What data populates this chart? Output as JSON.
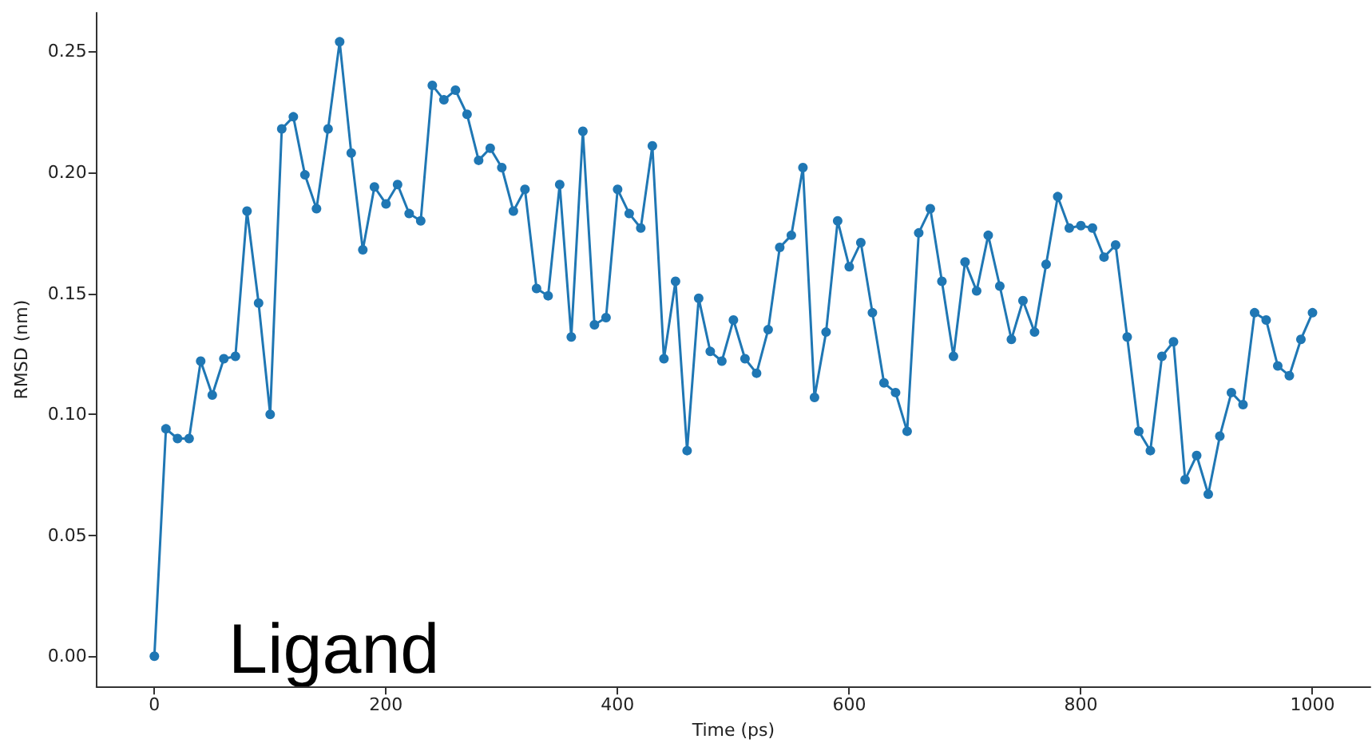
{
  "chart_data": {
    "type": "line",
    "xlabel": "Time (ps)",
    "ylabel": "RMSD (nm)",
    "annotations": [
      "Ligand"
    ],
    "x": [
      0,
      10,
      20,
      30,
      40,
      50,
      60,
      70,
      80,
      90,
      100,
      110,
      120,
      130,
      140,
      150,
      160,
      170,
      180,
      190,
      200,
      210,
      220,
      230,
      240,
      250,
      260,
      270,
      280,
      290,
      300,
      310,
      320,
      330,
      340,
      350,
      360,
      370,
      380,
      390,
      400,
      410,
      420,
      430,
      440,
      450,
      460,
      470,
      480,
      490,
      500,
      510,
      520,
      530,
      540,
      550,
      560,
      570,
      580,
      590,
      600,
      610,
      620,
      630,
      640,
      650,
      660,
      670,
      680,
      690,
      700,
      710,
      720,
      730,
      740,
      750,
      760,
      770,
      780,
      790,
      800,
      810,
      820,
      830,
      840,
      850,
      860,
      870,
      880,
      890,
      900,
      910,
      920,
      930,
      940,
      950,
      960,
      970,
      980,
      990,
      1000
    ],
    "series": [
      {
        "color": "#1f77b4",
        "values": [
          0.0,
          0.094,
          0.09,
          0.09,
          0.122,
          0.108,
          0.123,
          0.124,
          0.184,
          0.146,
          0.1,
          0.218,
          0.223,
          0.199,
          0.185,
          0.218,
          0.254,
          0.208,
          0.168,
          0.194,
          0.187,
          0.195,
          0.183,
          0.18,
          0.236,
          0.23,
          0.234,
          0.224,
          0.205,
          0.21,
          0.202,
          0.184,
          0.193,
          0.152,
          0.149,
          0.195,
          0.132,
          0.217,
          0.137,
          0.14,
          0.193,
          0.183,
          0.177,
          0.211,
          0.123,
          0.155,
          0.085,
          0.148,
          0.126,
          0.122,
          0.139,
          0.123,
          0.117,
          0.135,
          0.169,
          0.174,
          0.202,
          0.107,
          0.134,
          0.18,
          0.161,
          0.171,
          0.142,
          0.113,
          0.109,
          0.093,
          0.175,
          0.185,
          0.155,
          0.124,
          0.163,
          0.151,
          0.174,
          0.153,
          0.131,
          0.147,
          0.134,
          0.162,
          0.19,
          0.177,
          0.178,
          0.177,
          0.165,
          0.17,
          0.132,
          0.093,
          0.085,
          0.124,
          0.13,
          0.073,
          0.083,
          0.067,
          0.091,
          0.109,
          0.104,
          0.142,
          0.139,
          0.12,
          0.116,
          0.131,
          0.142
        ]
      }
    ],
    "xlim": [
      -50,
      1050
    ],
    "ylim": [
      -0.0125,
      0.266
    ],
    "xticks": [
      0,
      200,
      400,
      600,
      800,
      1000
    ],
    "yticks": [
      {
        "value": 0,
        "label": "0.00"
      },
      {
        "value": 0.05,
        "label": "0.05"
      },
      {
        "value": 0.1,
        "label": "0.10"
      },
      {
        "value": 0.15,
        "label": "0.15"
      },
      {
        "value": 0.2,
        "label": "0.20"
      },
      {
        "value": 0.25,
        "label": "0.25"
      }
    ],
    "marker": "circle",
    "grid": false
  }
}
